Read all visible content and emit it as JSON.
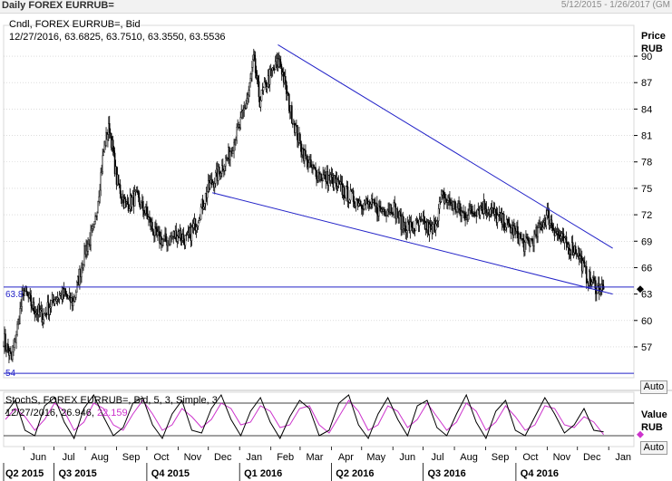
{
  "header": {
    "title": "Daily FOREX EURRUB=",
    "date_range": "5/12/2015 - 1/26/2017 (GM"
  },
  "price_panel": {
    "legend_series": "Cndl, FOREX EURRUB=, Bid",
    "legend_values": "12/27/2016, 63.6825, 63.7510, 63.3550, 63.5536",
    "axis_label_line1": "Price",
    "axis_label_line2": "RUB",
    "auto_label": "Auto",
    "line_labels": [
      "63.8",
      "54"
    ]
  },
  "stoch_panel": {
    "legend_series": "StochS, FOREX EURRUB=, Bid, 5, 3, Simple, 3",
    "legend_date": "12/27/2016,",
    "legend_value_k": "26.946,",
    "legend_value_d": "22.159",
    "axis_label_line1": "Value",
    "axis_label_line2": "RUB",
    "auto_label": "Auto"
  },
  "colors": {
    "trendline": "#2323c8",
    "candle": "#000000",
    "stoch_k": "#000000",
    "stoch_d": "#cc33cc",
    "grid": "#c8c8c8"
  },
  "chart_data": {
    "type": "candlestick",
    "yticks": [
      57,
      60,
      63,
      66,
      69,
      72,
      75,
      78,
      81,
      84,
      87,
      90
    ],
    "ylim": [
      53.5,
      93.5
    ],
    "x_month_labels": [
      "Jun",
      "Jul",
      "Aug",
      "Sep",
      "Oct",
      "Nov",
      "Dec",
      "Jan",
      "Feb",
      "Mar",
      "Apr",
      "May",
      "Jun",
      "Jul",
      "Aug",
      "Sep",
      "Oct",
      "Nov",
      "Dec",
      "Jan"
    ],
    "x_quarter_labels": [
      "Q2 2015",
      "Q3 2015",
      "Q4 2015",
      "Q1 2016",
      "Q2 2016",
      "Q3 2016",
      "Q4 2016"
    ],
    "last_price": 63.5536,
    "x_dates": [
      "2015-05-12",
      "2015-05-20",
      "2015-06-01",
      "2015-06-10",
      "2015-06-20",
      "2015-07-01",
      "2015-07-10",
      "2015-07-20",
      "2015-08-01",
      "2015-08-10",
      "2015-08-20",
      "2015-08-25",
      "2015-09-01",
      "2015-09-10",
      "2015-09-20",
      "2015-10-01",
      "2015-10-10",
      "2015-10-20",
      "2015-11-01",
      "2015-11-10",
      "2015-11-20",
      "2015-12-01",
      "2015-12-10",
      "2015-12-20",
      "2016-01-01",
      "2016-01-10",
      "2016-01-15",
      "2016-01-21",
      "2016-02-01",
      "2016-02-10",
      "2016-02-20",
      "2016-03-01",
      "2016-03-10",
      "2016-03-20",
      "2016-04-01",
      "2016-04-10",
      "2016-04-20",
      "2016-05-01",
      "2016-05-10",
      "2016-05-20",
      "2016-06-01",
      "2016-06-10",
      "2016-06-20",
      "2016-07-01",
      "2016-07-10",
      "2016-07-20",
      "2016-08-01",
      "2016-08-10",
      "2016-08-20",
      "2016-09-01",
      "2016-09-10",
      "2016-09-20",
      "2016-10-01",
      "2016-10-10",
      "2016-10-20",
      "2016-11-01",
      "2016-11-10",
      "2016-11-20",
      "2016-12-01",
      "2016-12-10",
      "2016-12-20",
      "2016-12-27"
    ],
    "close_values": [
      58.0,
      55.5,
      63.5,
      61.5,
      60.5,
      62.5,
      63.0,
      62.0,
      68.0,
      70.5,
      80.0,
      82.0,
      76.0,
      73.0,
      74.0,
      72.0,
      69.5,
      69.0,
      70.0,
      69.0,
      71.5,
      75.0,
      76.5,
      78.5,
      82.0,
      86.0,
      89.5,
      85.0,
      88.0,
      89.5,
      84.0,
      80.0,
      77.5,
      76.5,
      76.0,
      75.0,
      74.0,
      73.5,
      73.0,
      72.5,
      73.0,
      71.0,
      70.5,
      71.0,
      70.0,
      74.0,
      73.0,
      72.0,
      72.5,
      73.0,
      72.0,
      71.0,
      70.0,
      68.5,
      69.5,
      72.0,
      70.0,
      68.5,
      68.0,
      65.0,
      63.8,
      63.55
    ],
    "trendlines": [
      {
        "from": [
          "2016-02-08",
          91.3
        ],
        "to": [
          "2017-01-05",
          68.2
        ]
      },
      {
        "from": [
          "2015-12-05",
          74.5
        ],
        "to": [
          "2017-01-05",
          63.0
        ]
      }
    ],
    "horizontal_lines": [
      63.8,
      54.0
    ],
    "stoch_levels": [
      80,
      20
    ],
    "stoch_ylim": [
      0,
      100
    ],
    "stoch_k_values": [
      60,
      85,
      30,
      20,
      75,
      90,
      45,
      15,
      70,
      95,
      55,
      20,
      35,
      80,
      90,
      40,
      15,
      60,
      85,
      30,
      25,
      70,
      95,
      50,
      20,
      65,
      90,
      45,
      15,
      55,
      85,
      70,
      20,
      30,
      80,
      95,
      40,
      15,
      60,
      90,
      50,
      20,
      75,
      85,
      35,
      20,
      60,
      95,
      45,
      15,
      65,
      85,
      30,
      20,
      55,
      90,
      60,
      25,
      40,
      70,
      30,
      27
    ],
    "stoch_d_values": [
      50,
      70,
      55,
      30,
      50,
      80,
      65,
      30,
      45,
      80,
      70,
      40,
      30,
      60,
      85,
      60,
      30,
      40,
      70,
      55,
      35,
      50,
      80,
      70,
      40,
      45,
      75,
      65,
      35,
      40,
      70,
      75,
      40,
      25,
      55,
      85,
      65,
      30,
      40,
      75,
      65,
      35,
      50,
      80,
      55,
      30,
      45,
      80,
      65,
      30,
      45,
      75,
      55,
      30,
      40,
      75,
      70,
      40,
      35,
      55,
      45,
      22
    ]
  }
}
